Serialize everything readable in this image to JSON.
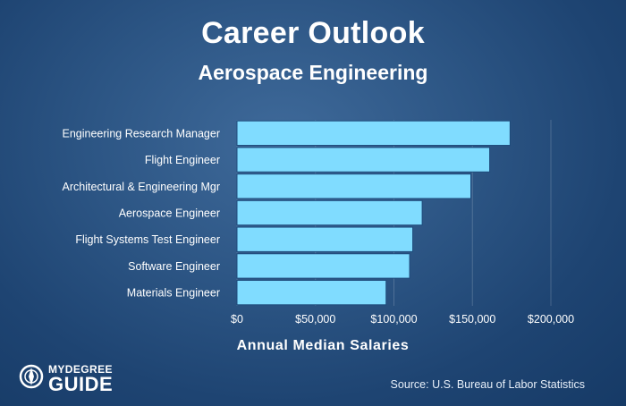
{
  "header": {
    "title": "Career Outlook",
    "subtitle": "Aerospace Engineering"
  },
  "chart_data": {
    "type": "bar",
    "orientation": "horizontal",
    "categories": [
      "Engineering Research Manager",
      "Flight Engineer",
      "Architectural & Engineering Mgr",
      "Aerospace Engineer",
      "Flight Systems Test Engineer",
      "Software Engineer",
      "Materials Engineer"
    ],
    "values": [
      174000,
      161000,
      149000,
      118000,
      112000,
      110000,
      95000
    ],
    "xlabel": "Annual Median Salaries",
    "xlim": [
      0,
      200000
    ],
    "ticks": [
      0,
      50000,
      100000,
      150000,
      200000
    ],
    "tick_labels": [
      "$0",
      "$50,000",
      "$100,000",
      "$150,000",
      "$200,000"
    ],
    "grid": true,
    "bar_color": "#80dcff",
    "bar_edge_color": "#1e4b7c"
  },
  "footer": {
    "logo_line1": "MYDEGREE",
    "logo_line2": "GUIDE",
    "source": "Source: U.S. Bureau of Labor Statistics"
  }
}
